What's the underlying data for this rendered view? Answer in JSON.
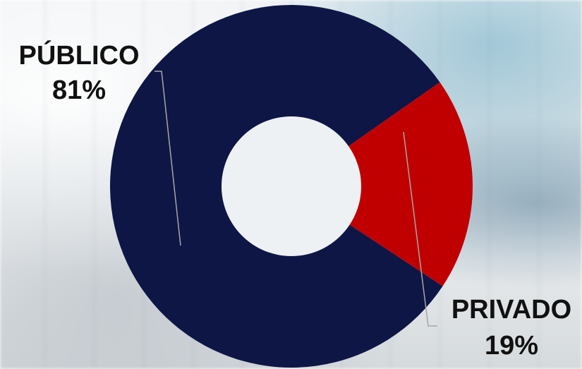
{
  "chart_data": {
    "type": "pie",
    "variant": "donut",
    "slices": [
      {
        "label": "PÚBLICO",
        "value": 81,
        "display": "81%",
        "color": "#0E1646"
      },
      {
        "label": "PRIVADO",
        "value": 19,
        "display": "19%",
        "color": "#C00000"
      }
    ],
    "background_hole_color": "#EEF1F3",
    "leader_line_color": "#A6A6A6"
  }
}
